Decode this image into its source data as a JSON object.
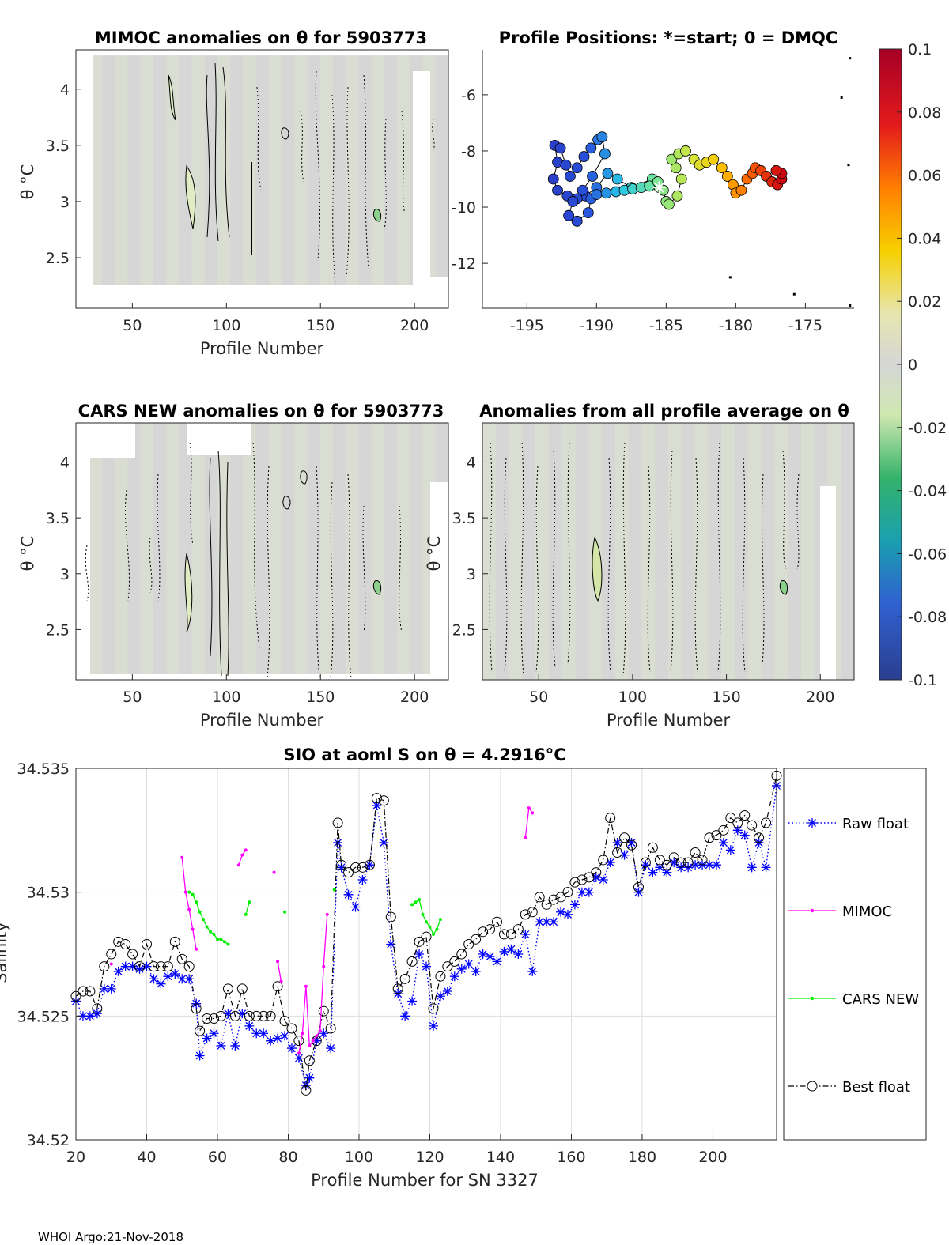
{
  "footer": "WHOI Argo:21-Nov-2018",
  "colors": {
    "field": "#d6d6d6",
    "field_tint": "#dfe8cf",
    "raw": "#0000ff",
    "mimoc": "#ff00ff",
    "cars": "#00ee00",
    "best": "#000000",
    "grid": "#dddddd"
  },
  "chart_data": [
    {
      "id": "mimoc",
      "type": "heatmap",
      "title": "MIMOC anomalies on θ  for 5903773",
      "xlabel": "Profile Number",
      "ylabel": "θ °C",
      "xlim": [
        20,
        218
      ],
      "ylim": [
        2.05,
        4.35
      ],
      "xticks": [
        50,
        100,
        150,
        200
      ],
      "yticks": [
        2.5,
        3,
        3.5,
        4
      ],
      "field_xrange": [
        27,
        218
      ],
      "field_yrange": [
        2.25,
        4.3
      ]
    },
    {
      "id": "positions",
      "type": "scatter",
      "title": "Profile Positions: *=start; 0 = DMQC",
      "xlabel": "",
      "ylabel": "",
      "xlim": [
        -198.2,
        -171.5
      ],
      "ylim": [
        -13.6,
        -4.4
      ],
      "xticks": [
        -195,
        -190,
        -185,
        -180,
        -175
      ],
      "yticks": [
        -12,
        -10,
        -8,
        -6
      ],
      "track": [
        [
          -185.5,
          -9.3
        ],
        [
          -186.0,
          -9.0
        ],
        [
          -187.5,
          -9.3
        ],
        [
          -188.5,
          -9.0
        ],
        [
          -189.2,
          -8.8
        ],
        [
          -190.0,
          -9.3
        ],
        [
          -190.8,
          -9.6
        ],
        [
          -191.4,
          -9.7
        ],
        [
          -192.1,
          -9.6
        ],
        [
          -192.8,
          -9.4
        ],
        [
          -193.1,
          -9.0
        ],
        [
          -192.8,
          -8.4
        ],
        [
          -193.0,
          -7.8
        ],
        [
          -192.6,
          -7.9
        ],
        [
          -192.2,
          -8.5
        ],
        [
          -191.9,
          -8.9
        ],
        [
          -191.4,
          -8.6
        ],
        [
          -190.9,
          -8.2
        ],
        [
          -190.4,
          -7.9
        ],
        [
          -189.9,
          -7.6
        ],
        [
          -189.6,
          -7.5
        ],
        [
          -189.4,
          -8.1
        ],
        [
          -190.3,
          -8.9
        ],
        [
          -191.0,
          -9.4
        ],
        [
          -191.7,
          -9.8
        ],
        [
          -192.0,
          -10.3
        ],
        [
          -191.4,
          -10.5
        ],
        [
          -190.6,
          -10.2
        ],
        [
          -190.4,
          -9.7
        ],
        [
          -190.0,
          -9.55
        ],
        [
          -189.3,
          -9.5
        ],
        [
          -188.6,
          -9.45
        ],
        [
          -188.0,
          -9.4
        ],
        [
          -187.4,
          -9.35
        ],
        [
          -186.8,
          -9.3
        ],
        [
          -186.2,
          -9.25
        ],
        [
          -185.6,
          -9.1
        ],
        [
          -185.2,
          -9.4
        ],
        [
          -185.0,
          -9.8
        ],
        [
          -184.8,
          -9.9
        ],
        [
          -184.2,
          -9.6
        ],
        [
          -183.9,
          -9.0
        ],
        [
          -184.3,
          -8.6
        ],
        [
          -184.6,
          -8.3
        ],
        [
          -184.1,
          -8.1
        ],
        [
          -183.6,
          -8.0
        ],
        [
          -183.0,
          -8.3
        ],
        [
          -182.6,
          -8.5
        ],
        [
          -182.1,
          -8.4
        ],
        [
          -181.6,
          -8.3
        ],
        [
          -181.0,
          -8.6
        ],
        [
          -180.6,
          -8.9
        ],
        [
          -180.2,
          -9.2
        ],
        [
          -180.0,
          -9.5
        ],
        [
          -179.6,
          -9.4
        ],
        [
          -179.2,
          -9.0
        ],
        [
          -178.8,
          -8.8
        ],
        [
          -178.6,
          -8.6
        ],
        [
          -178.2,
          -8.7
        ],
        [
          -177.8,
          -8.9
        ],
        [
          -177.4,
          -9.1
        ],
        [
          -177.0,
          -9.2
        ],
        [
          -176.7,
          -9.0
        ],
        [
          -176.7,
          -8.8
        ],
        [
          -177.1,
          -8.7
        ]
      ],
      "isolated": [
        [
          -171.8,
          -4.7
        ],
        [
          -172.4,
          -6.1
        ],
        [
          -171.9,
          -8.5
        ],
        [
          -175.8,
          -13.1
        ],
        [
          -171.8,
          -13.5
        ],
        [
          -180.4,
          -12.5
        ]
      ]
    },
    {
      "id": "colorbar",
      "type": "heatmap",
      "ticks": [
        "0.1",
        "0.08",
        "0.06",
        "0.04",
        "0.02",
        "0",
        "-0.02",
        "-0.04",
        "-0.06",
        "-0.08",
        "-0.1"
      ],
      "range": [
        -0.1,
        0.1
      ]
    },
    {
      "id": "cars",
      "type": "heatmap",
      "title": "CARS NEW anomalies on θ for 5903773",
      "xlabel": "Profile Number",
      "ylabel": "θ °C",
      "xlim": [
        20,
        218
      ],
      "ylim": [
        2.05,
        4.35
      ],
      "xticks": [
        50,
        100,
        150,
        200
      ],
      "yticks": [
        2.5,
        3,
        3.5,
        4
      ],
      "field_xrange": [
        27,
        218
      ],
      "field_yrange": [
        2.1,
        4.35
      ]
    },
    {
      "id": "allavg",
      "type": "heatmap",
      "title": "Anomalies from all profile average on θ",
      "xlabel": "Profile Number",
      "ylabel": "θ °C",
      "xlim": [
        20,
        218
      ],
      "ylim": [
        2.05,
        4.35
      ],
      "xticks": [
        50,
        100,
        150,
        200
      ],
      "yticks": [
        2.5,
        3,
        3.5,
        4
      ],
      "field_xrange": [
        20,
        218
      ],
      "field_yrange": [
        2.05,
        4.35
      ]
    },
    {
      "id": "salinity",
      "type": "line",
      "title": "SIO at aoml S on θ = 4.2916°C",
      "xlabel": "Profile Number for SN 3327",
      "ylabel": "Salinity",
      "xlim": [
        20,
        218
      ],
      "ylim": [
        34.52,
        34.535
      ],
      "xticks": [
        20,
        40,
        60,
        80,
        100,
        120,
        140,
        160,
        180,
        200
      ],
      "yticks": [
        34.52,
        34.525,
        34.53,
        34.535
      ],
      "legend": [
        "Raw float",
        "MIMOC",
        "CARS NEW",
        "Best float"
      ],
      "series": [
        {
          "name": "Raw float",
          "x": [
            20,
            22,
            24,
            26,
            28,
            30,
            32,
            34,
            36,
            38,
            40,
            42,
            44,
            46,
            48,
            50,
            52,
            54,
            55,
            57,
            59,
            61,
            63,
            65,
            67,
            69,
            71,
            73,
            75,
            77,
            79,
            81,
            83,
            85,
            86,
            88,
            90,
            92,
            94,
            95,
            97,
            99,
            101,
            103,
            105,
            107,
            109,
            111,
            113,
            115,
            117,
            119,
            121,
            123,
            125,
            127,
            129,
            131,
            133,
            135,
            137,
            139,
            141,
            143,
            145,
            147,
            149,
            151,
            153,
            155,
            157,
            159,
            161,
            163,
            165,
            167,
            169,
            171,
            173,
            175,
            177,
            179,
            181,
            183,
            185,
            187,
            189,
            191,
            193,
            195,
            197,
            199,
            201,
            203,
            205,
            207,
            209,
            211,
            213,
            215,
            218
          ],
          "values": [
            34.5256,
            34.525,
            34.525,
            34.5251,
            34.5261,
            34.5261,
            34.5268,
            34.527,
            34.527,
            34.5269,
            34.527,
            34.5265,
            34.5263,
            34.5266,
            34.5267,
            34.5265,
            34.5265,
            34.5255,
            34.5234,
            34.5241,
            34.5243,
            34.5238,
            34.5251,
            34.5238,
            34.5251,
            34.5246,
            34.5243,
            34.5243,
            34.524,
            34.5241,
            34.5242,
            34.5237,
            34.5233,
            34.5222,
            34.5225,
            34.524,
            34.5243,
            34.5237,
            34.532,
            34.531,
            34.5299,
            34.5294,
            34.5305,
            34.5311,
            34.5335,
            34.532,
            34.5279,
            34.5259,
            34.525,
            34.5256,
            34.5275,
            34.527,
            34.5246,
            34.5258,
            34.526,
            34.5266,
            34.5269,
            34.5271,
            34.5268,
            34.5275,
            34.5274,
            34.5272,
            34.5276,
            34.5277,
            34.5275,
            34.5283,
            34.5268,
            34.5288,
            34.5288,
            34.5288,
            34.5292,
            34.5291,
            34.5295,
            34.53,
            34.53,
            34.5306,
            34.5305,
            34.5312,
            34.532,
            34.5315,
            34.532,
            34.53,
            34.5311,
            34.5308,
            34.531,
            34.5308,
            34.5312,
            34.531,
            34.531,
            34.5311,
            34.5311,
            34.5311,
            34.5311,
            34.532,
            34.5317,
            34.5325,
            34.5323,
            34.531,
            34.532,
            34.531,
            34.5343
          ]
        },
        {
          "name": "Best float",
          "x": [
            20,
            22,
            24,
            26,
            28,
            30,
            32,
            34,
            36,
            38,
            40,
            42,
            44,
            46,
            48,
            50,
            52,
            54,
            55,
            57,
            59,
            61,
            63,
            65,
            67,
            69,
            71,
            73,
            75,
            77,
            79,
            81,
            83,
            85,
            86,
            88,
            90,
            92,
            94,
            95,
            97,
            99,
            101,
            103,
            105,
            107,
            109,
            111,
            113,
            115,
            117,
            119,
            121,
            123,
            125,
            127,
            129,
            131,
            133,
            135,
            137,
            139,
            141,
            143,
            145,
            147,
            149,
            151,
            153,
            155,
            157,
            159,
            161,
            163,
            165,
            167,
            169,
            171,
            173,
            175,
            177,
            179,
            181,
            183,
            185,
            187,
            189,
            191,
            193,
            195,
            197,
            199,
            201,
            203,
            205,
            207,
            209,
            211,
            213,
            215,
            218
          ],
          "values": [
            34.5258,
            34.526,
            34.526,
            34.5253,
            34.527,
            34.5275,
            34.528,
            34.5279,
            34.5275,
            34.527,
            34.5279,
            34.527,
            34.527,
            34.527,
            34.528,
            34.5273,
            34.527,
            34.5253,
            34.5244,
            34.5249,
            34.5249,
            34.525,
            34.5261,
            34.525,
            34.5261,
            34.525,
            34.525,
            34.525,
            34.525,
            34.5262,
            34.5248,
            34.5245,
            34.524,
            34.522,
            34.5232,
            34.524,
            34.5252,
            34.5245,
            34.5328,
            34.5311,
            34.5308,
            34.531,
            34.531,
            34.5311,
            34.5338,
            34.5337,
            34.529,
            34.5261,
            34.5265,
            34.5272,
            34.528,
            34.5282,
            34.5253,
            34.5266,
            34.527,
            34.5272,
            34.5275,
            34.5279,
            34.5281,
            34.5284,
            34.5285,
            34.5288,
            34.5283,
            34.5283,
            34.5285,
            34.5291,
            34.5292,
            34.5298,
            34.5295,
            34.5297,
            34.5298,
            34.53,
            34.5304,
            34.5305,
            34.5306,
            34.5308,
            34.5313,
            34.533,
            34.5316,
            34.5322,
            34.5319,
            34.5302,
            34.5312,
            34.5318,
            34.5313,
            34.5311,
            34.5314,
            34.5312,
            34.5312,
            34.5316,
            34.5313,
            34.5322,
            34.5323,
            34.5325,
            34.533,
            34.5328,
            34.5331,
            34.5327,
            34.5322,
            34.5328,
            34.5347
          ]
        },
        {
          "name": "MIMOC",
          "segments": [
            {
              "x": [
                50,
                51,
                52,
                53,
                54
              ],
              "values": [
                34.5314,
                34.53,
                34.5293,
                34.5285,
                34.5277
              ]
            },
            {
              "x": [
                66,
                67,
                68
              ],
              "values": [
                34.5311,
                34.5315,
                34.5317
              ]
            },
            {
              "x": [
                77,
                78
              ],
              "values": [
                34.5272,
                34.5264
              ]
            },
            {
              "x": [
                83,
                84,
                85,
                86,
                87,
                88,
                89,
                90,
                91
              ],
              "values": [
                34.5235,
                34.5243,
                34.5262,
                34.5238,
                34.524,
                34.5242,
                34.5244,
                34.527,
                34.5291
              ]
            },
            {
              "x": [
                147,
                148,
                149
              ],
              "values": [
                34.5322,
                34.5334,
                34.5332
              ]
            }
          ],
          "points": [
            [
              30,
              34.5271
            ],
            [
              76,
              34.5308
            ]
          ]
        },
        {
          "name": "CARS NEW",
          "segments": [
            {
              "x": [
                52,
                53,
                54,
                55,
                56,
                57,
                58,
                59,
                60,
                61,
                62,
                63
              ],
              "values": [
                34.53,
                34.5299,
                34.5296,
                34.5292,
                34.5289,
                34.5286,
                34.5284,
                34.5283,
                34.5281,
                34.5281,
                34.528,
                34.5279
              ]
            },
            {
              "x": [
                68,
                69
              ],
              "values": [
                34.5291,
                34.5296
              ]
            },
            {
              "x": [
                115,
                116,
                117,
                118,
                119,
                120,
                121,
                122,
                123
              ],
              "values": [
                34.5295,
                34.5296,
                34.5297,
                34.5291,
                34.5288,
                34.5286,
                34.5283,
                34.5285,
                34.5289
              ]
            }
          ],
          "points": [
            [
              79,
              34.5292
            ],
            [
              93,
              34.5301
            ]
          ]
        }
      ]
    }
  ]
}
